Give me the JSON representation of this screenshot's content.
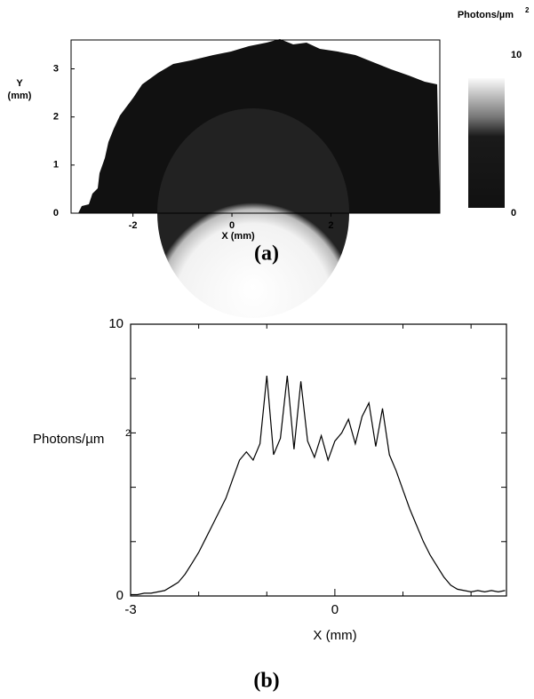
{
  "chart_data": [
    {
      "type": "image",
      "caption": "(a)",
      "xlabel": "X (mm)",
      "ylabel_lines": [
        "Y",
        "(mm)"
      ],
      "xlim": [
        -3.25,
        4.2
      ],
      "ylim": [
        0,
        3.6
      ],
      "xticks": [
        -2,
        0,
        2
      ],
      "yticks": [
        0,
        1,
        2,
        3
      ],
      "colorbar": {
        "label": "Photons/µm",
        "label_sup": "2",
        "lim": [
          0,
          10
        ],
        "ticks": [
          0,
          10
        ]
      }
    },
    {
      "type": "line",
      "caption": "(b)",
      "xlabel": "X (mm)",
      "ylabel": "Photons/µm",
      "ylabel_sup": "2",
      "xlim": [
        -3,
        2.52
      ],
      "ylim": [
        0,
        10
      ],
      "xticks": [
        -3,
        0
      ],
      "yticks": [
        0,
        10
      ],
      "xminor": [
        -2,
        -1,
        1,
        2
      ],
      "yminor": [
        2,
        4,
        6,
        8
      ],
      "color": "#000000",
      "x": [
        -3.0,
        -2.9,
        -2.8,
        -2.7,
        -2.6,
        -2.5,
        -2.4,
        -2.3,
        -2.2,
        -2.1,
        -2.0,
        -1.9,
        -1.8,
        -1.7,
        -1.6,
        -1.5,
        -1.4,
        -1.3,
        -1.2,
        -1.1,
        -1.0,
        -0.9,
        -0.8,
        -0.7,
        -0.6,
        -0.5,
        -0.4,
        -0.3,
        -0.2,
        -0.1,
        0.0,
        0.1,
        0.2,
        0.3,
        0.4,
        0.5,
        0.6,
        0.7,
        0.8,
        0.9,
        1.0,
        1.1,
        1.2,
        1.3,
        1.4,
        1.5,
        1.6,
        1.7,
        1.8,
        1.9,
        2.0,
        2.1,
        2.2,
        2.3,
        2.4,
        2.5
      ],
      "values": [
        0.05,
        0.05,
        0.1,
        0.1,
        0.15,
        0.2,
        0.35,
        0.5,
        0.8,
        1.2,
        1.6,
        2.1,
        2.6,
        3.1,
        3.6,
        4.3,
        5.0,
        5.3,
        5.0,
        5.6,
        8.1,
        5.2,
        5.8,
        8.1,
        5.4,
        7.9,
        5.7,
        5.1,
        5.9,
        5.0,
        5.7,
        6.0,
        6.5,
        5.6,
        6.6,
        7.1,
        5.5,
        6.9,
        5.2,
        4.6,
        3.9,
        3.2,
        2.6,
        2.0,
        1.5,
        1.1,
        0.7,
        0.4,
        0.25,
        0.2,
        0.15,
        0.2,
        0.15,
        0.2,
        0.15,
        0.2
      ]
    }
  ]
}
